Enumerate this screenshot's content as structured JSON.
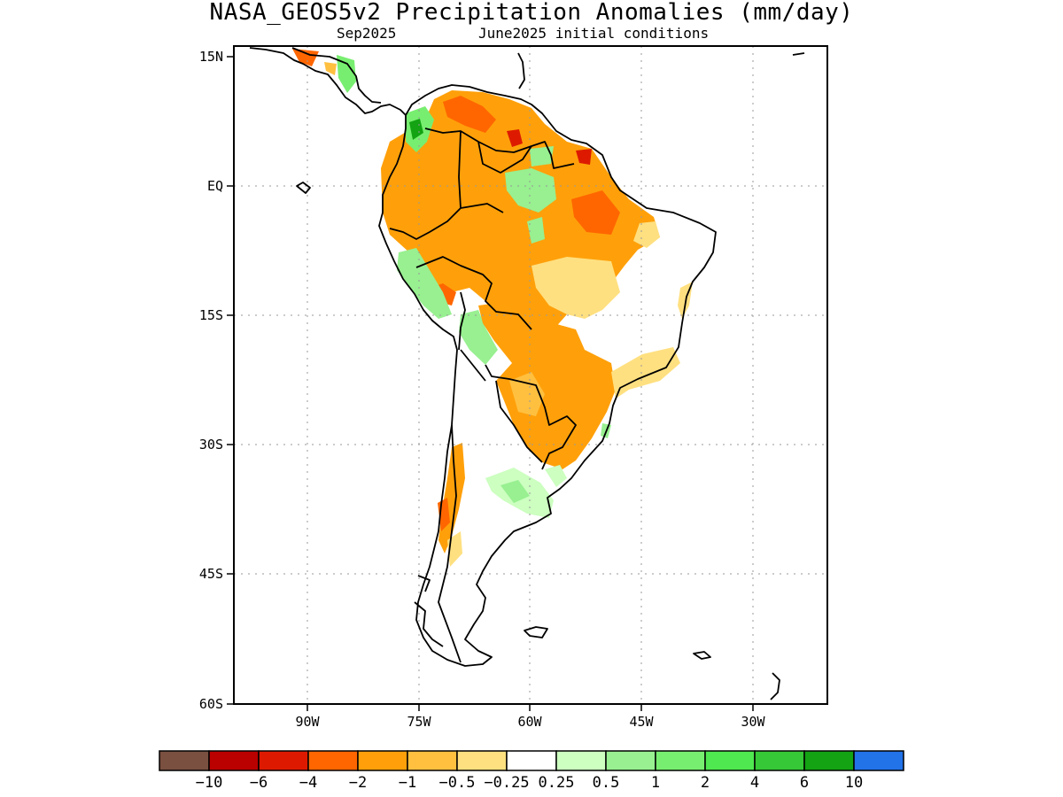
{
  "title": "NASA_GEOS5v2 Precipitation Anomalies (mm/day)",
  "subtitle_left": "Sep2025",
  "subtitle_right": "June2025 initial conditions",
  "y_axis_labels": [
    "15N",
    "EQ",
    "15S",
    "30S",
    "45S",
    "60S"
  ],
  "x_axis_labels": [
    "90W",
    "75W",
    "60W",
    "45W",
    "30W"
  ],
  "colorbar": {
    "colors": [
      "#7a5040",
      "#bb0000",
      "#dd1a00",
      "#ff6600",
      "#ffa00a",
      "#ffc040",
      "#ffe080",
      "#ffffff",
      "#ccffc0",
      "#98f090",
      "#78ee70",
      "#50e850",
      "#36c836",
      "#13a313",
      "#2272e8"
    ],
    "labels": [
      "-10",
      "-6",
      "-4",
      "-2",
      "-1",
      "-0.5",
      "-0.25",
      "0.25",
      "0.5",
      "1",
      "2",
      "4",
      "6",
      "10"
    ]
  },
  "legend_colors": {
    "dry_strong": "#dd1a00",
    "dry_moderate": "#ff6600",
    "dry": "#ffa00a",
    "dry_light": "#ffc040",
    "dry_faint": "#ffe080",
    "wet_faint": "#ccffc0",
    "wet_light": "#98f090",
    "wet": "#78ee70",
    "wet_moderate": "#36c836",
    "wet_strong": "#13a313"
  }
}
